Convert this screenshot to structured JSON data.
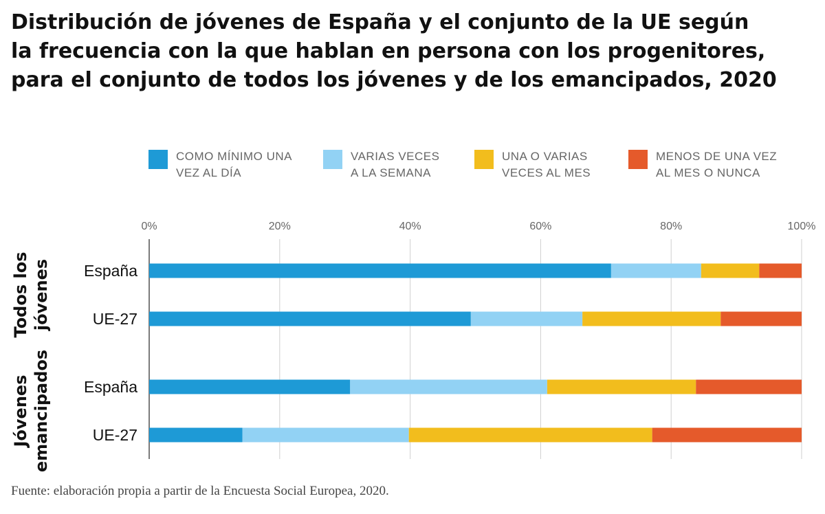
{
  "title_lines": [
    "Distribución de jóvenes de España y el conjunto de la UE según",
    "la frecuencia con la que hablan en persona con los progenitores,",
    "para el conjunto de todos los jóvenes y de los emancipados, 2020"
  ],
  "source": "Fuente: elaboración propia a partir de la Encuesta Social Europea, 2020.",
  "chart_data": {
    "type": "bar",
    "orientation": "horizontal",
    "stacked": true,
    "xlim": [
      0,
      100
    ],
    "x_ticks": [
      "0%",
      "20%",
      "40%",
      "60%",
      "80%",
      "100%"
    ],
    "grid": true,
    "legend_placement": "top",
    "groups": [
      {
        "label": "Todos los jóvenes",
        "label_lines": [
          "Todos los",
          "jóvenes"
        ],
        "categories": [
          "España",
          "UE-27"
        ]
      },
      {
        "label": "Jóvenes emancipados",
        "label_lines": [
          "Jóvenes",
          "emancipados"
        ],
        "categories": [
          "España",
          "UE-27"
        ]
      }
    ],
    "series": [
      {
        "name": "COMO MÍNIMO UNA VEZ AL DÍA",
        "color": "#1E9AD6",
        "values": [
          70.8,
          49.3,
          30.8,
          14.3
        ]
      },
      {
        "name": "VARIAS VECES A LA SEMANA",
        "color": "#92D2F4",
        "values": [
          13.8,
          17.1,
          30.2,
          25.5
        ]
      },
      {
        "name": "UNA O VARIAS VECES AL MES",
        "color": "#F2BD1D",
        "values": [
          8.9,
          21.2,
          22.8,
          37.3
        ]
      },
      {
        "name": "MENOS DE UNA VEZ AL MES O NUNCA",
        "color": "#E55A2B",
        "values": [
          6.5,
          12.4,
          16.2,
          22.9
        ]
      }
    ]
  }
}
